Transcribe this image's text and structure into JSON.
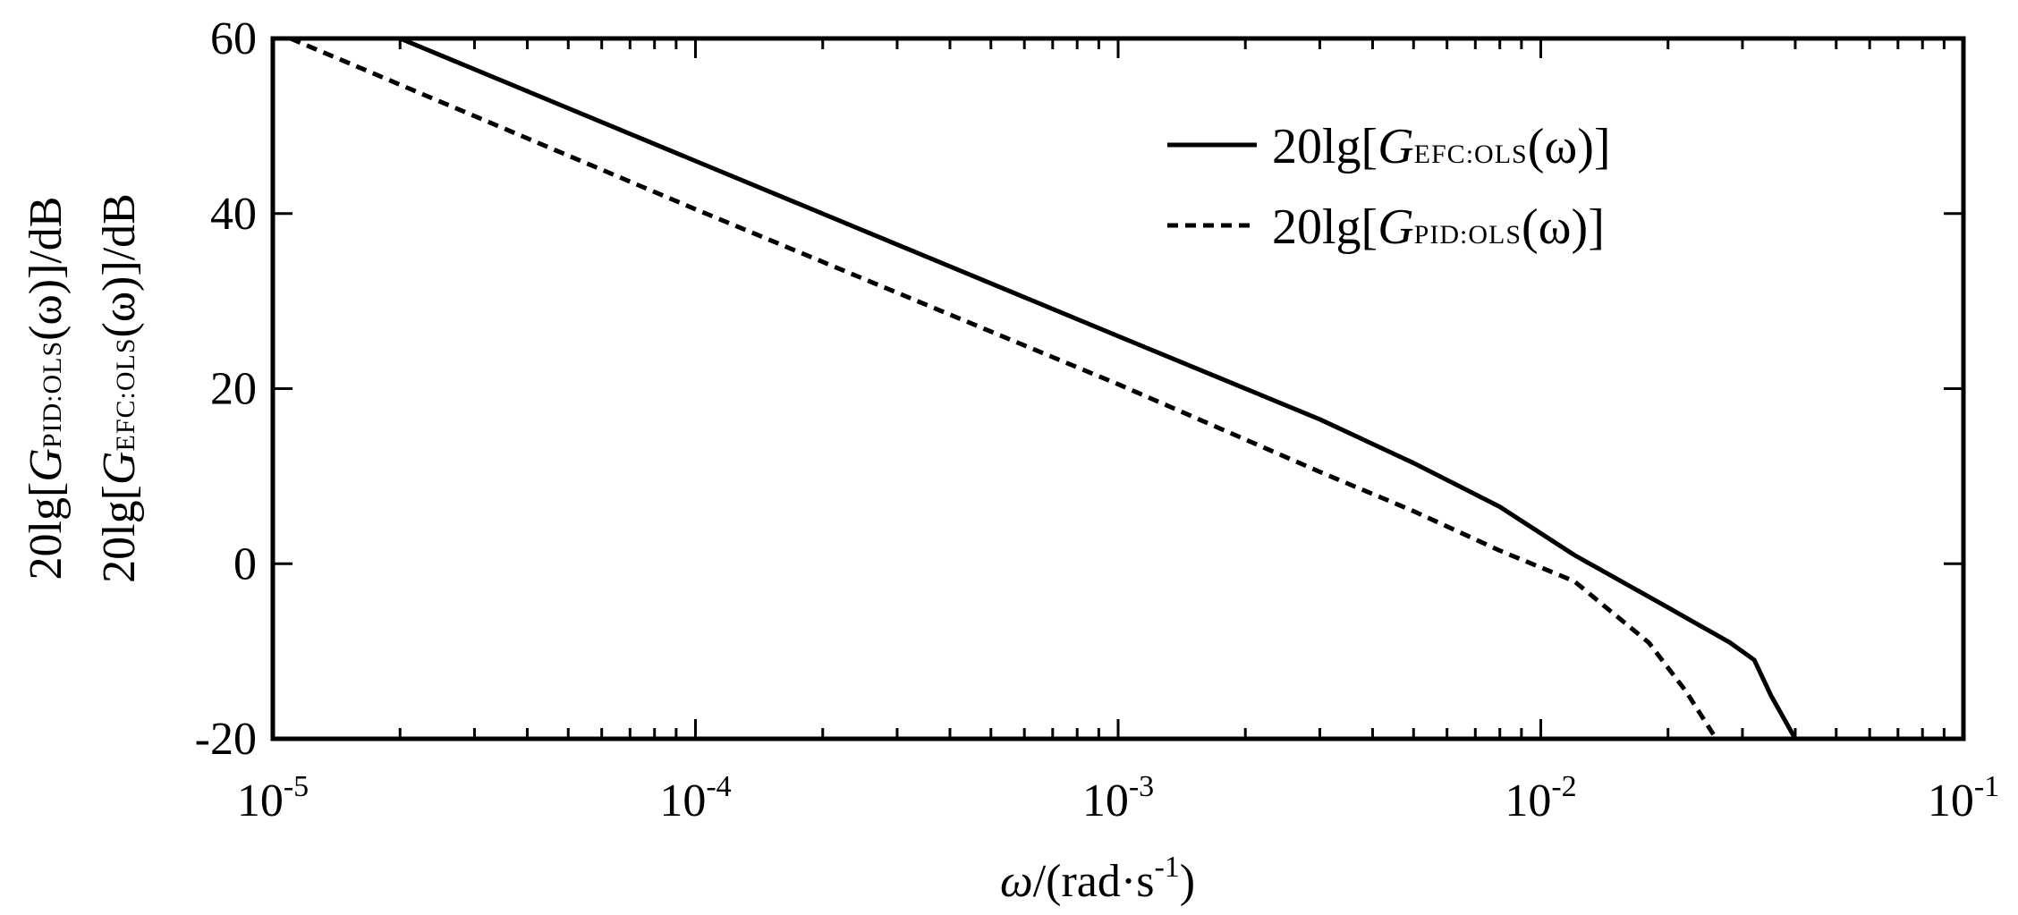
{
  "chart_data": {
    "type": "line",
    "xscale": "log",
    "xlim": [
      1e-05,
      0.1
    ],
    "ylim": [
      -20,
      60
    ],
    "yticks": [
      -20,
      0,
      20,
      40,
      60
    ],
    "xticks": [
      {
        "base": "10",
        "exp": "-5"
      },
      {
        "base": "10",
        "exp": "-4"
      },
      {
        "base": "10",
        "exp": "-3"
      },
      {
        "base": "10",
        "exp": "-2"
      },
      {
        "base": "10",
        "exp": "-1"
      }
    ],
    "xlabel": {
      "main": "ω/(rad·s",
      "exp": "-1",
      "close": ")"
    },
    "ylabel_lines": [
      {
        "pre": "20lg[",
        "G": "G",
        "sub": "PID:OLS",
        "post": "(ω)]/dB"
      },
      {
        "pre": "20lg[",
        "G": "G",
        "sub": "EFC:OLS",
        "post": "(ω)]/dB"
      }
    ],
    "legend": {
      "position": "top-right",
      "entries": [
        {
          "pre": "20lg[",
          "G": "G",
          "sub": "EFC:OLS",
          "post": "(ω)]",
          "style": "solid"
        },
        {
          "pre": "20lg[",
          "G": "G",
          "sub": "PID:OLS",
          "post": "(ω)]",
          "style": "dashed"
        }
      ]
    },
    "series": [
      {
        "id": "efc",
        "style": "solid",
        "x": [
          2e-05,
          0.0001,
          0.001,
          0.003,
          0.005,
          0.008,
          0.012,
          0.02,
          0.028,
          0.032,
          0.035,
          0.04
        ],
        "y": [
          60,
          46,
          26,
          16.5,
          11.5,
          6.5,
          1,
          -5,
          -9,
          -11,
          -15,
          -20
        ]
      },
      {
        "id": "pid",
        "style": "dashed",
        "x": [
          1.1e-05,
          0.0001,
          0.001,
          0.003,
          0.005,
          0.008,
          0.012,
          0.018,
          0.022,
          0.026
        ],
        "y": [
          60,
          40.5,
          20.5,
          10.5,
          6,
          1.5,
          -2,
          -9,
          -14.5,
          -20
        ]
      }
    ],
    "grid": false,
    "colors": {
      "line": "#000000",
      "frame": "#000000"
    }
  }
}
